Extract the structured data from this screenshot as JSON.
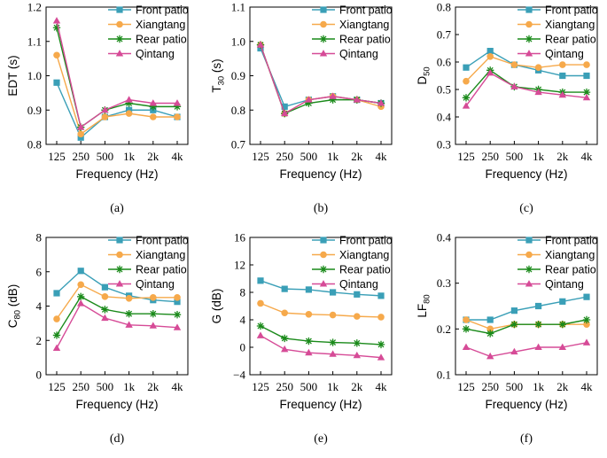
{
  "colors": {
    "front_patio": "#3a9fb7",
    "xiangtang": "#f6a94b",
    "rear_patio": "#1a8a1a",
    "qintang": "#d64b97"
  },
  "chart_data": [
    {
      "panel": "(a)",
      "type": "line",
      "categories": [
        "125",
        "250",
        "500",
        "1k",
        "2k",
        "4k"
      ],
      "xlabel": "Frequency (Hz)",
      "ylabel": "EDT (s)",
      "ylabel_main": "EDT (s)",
      "ylabel_sub": "",
      "ylabel_tail": "",
      "ylim": [
        0.8,
        1.2
      ],
      "yticks": [
        0.8,
        0.9,
        1.0,
        1.1,
        1.2
      ],
      "ytick_labels": [
        "0.8",
        "0.9",
        "1.0",
        "1.1",
        "1.2"
      ],
      "series": [
        {
          "name": "Front patio",
          "values": [
            0.98,
            0.82,
            0.88,
            0.9,
            0.9,
            0.88
          ]
        },
        {
          "name": "Xiangtang",
          "values": [
            1.06,
            0.83,
            0.88,
            0.89,
            0.88,
            0.88
          ]
        },
        {
          "name": "Rear patio",
          "values": [
            1.14,
            0.85,
            0.9,
            0.92,
            0.91,
            0.91
          ]
        },
        {
          "name": "Qintang",
          "values": [
            1.16,
            0.85,
            0.9,
            0.93,
            0.92,
            0.92
          ]
        }
      ]
    },
    {
      "panel": "(b)",
      "type": "line",
      "categories": [
        "125",
        "250",
        "500",
        "1k",
        "2k",
        "4k"
      ],
      "xlabel": "Frequency (Hz)",
      "ylabel": "T30 (s)",
      "ylabel_main": "T",
      "ylabel_sub": "30",
      "ylabel_tail": " (s)",
      "ylim": [
        0.7,
        1.1
      ],
      "yticks": [
        0.7,
        0.8,
        0.9,
        1.0,
        1.1
      ],
      "ytick_labels": [
        "0.7",
        "0.8",
        "0.9",
        "1.0",
        "1.1"
      ],
      "series": [
        {
          "name": "Front patio",
          "values": [
            0.98,
            0.81,
            0.83,
            0.84,
            0.83,
            0.82
          ]
        },
        {
          "name": "Xiangtang",
          "values": [
            0.99,
            0.79,
            0.83,
            0.84,
            0.83,
            0.81
          ]
        },
        {
          "name": "Rear patio",
          "values": [
            0.99,
            0.79,
            0.82,
            0.83,
            0.83,
            0.82
          ]
        },
        {
          "name": "Qintang",
          "values": [
            0.99,
            0.79,
            0.83,
            0.84,
            0.83,
            0.82
          ]
        }
      ]
    },
    {
      "panel": "(c)",
      "type": "line",
      "categories": [
        "125",
        "250",
        "500",
        "1k",
        "2k",
        "4k"
      ],
      "xlabel": "Frequency (Hz)",
      "ylabel": "D50",
      "ylabel_main": "D",
      "ylabel_sub": "50",
      "ylabel_tail": "",
      "ylim": [
        0.3,
        0.8
      ],
      "yticks": [
        0.3,
        0.4,
        0.5,
        0.6,
        0.7,
        0.8
      ],
      "ytick_labels": [
        "0.3",
        "0.4",
        "0.5",
        "0.6",
        "0.7",
        "0.8"
      ],
      "series": [
        {
          "name": "Front patio",
          "values": [
            0.58,
            0.64,
            0.59,
            0.57,
            0.55,
            0.55
          ]
        },
        {
          "name": "Xiangtang",
          "values": [
            0.53,
            0.62,
            0.59,
            0.58,
            0.59,
            0.59
          ]
        },
        {
          "name": "Rear patio",
          "values": [
            0.47,
            0.57,
            0.51,
            0.5,
            0.49,
            0.49
          ]
        },
        {
          "name": "Qintang",
          "values": [
            0.44,
            0.56,
            0.51,
            0.49,
            0.48,
            0.47
          ]
        }
      ]
    },
    {
      "panel": "(d)",
      "type": "line",
      "categories": [
        "125",
        "250",
        "500",
        "1k",
        "2k",
        "4k"
      ],
      "xlabel": "Frequency (Hz)",
      "ylabel": "C80 (dB)",
      "ylabel_main": "C",
      "ylabel_sub": "80",
      "ylabel_tail": " (dB)",
      "ylim": [
        0,
        8
      ],
      "yticks": [
        0,
        2,
        4,
        6,
        8
      ],
      "ytick_labels": [
        "0",
        "2",
        "4",
        "6",
        "8"
      ],
      "series": [
        {
          "name": "Front patio",
          "values": [
            4.75,
            6.05,
            5.1,
            4.6,
            4.35,
            4.25
          ]
        },
        {
          "name": "Xiangtang",
          "values": [
            3.25,
            5.25,
            4.55,
            4.45,
            4.5,
            4.5
          ]
        },
        {
          "name": "Rear patio",
          "values": [
            2.3,
            4.55,
            3.8,
            3.55,
            3.55,
            3.5
          ]
        },
        {
          "name": "Qintang",
          "values": [
            1.55,
            4.15,
            3.3,
            2.9,
            2.85,
            2.75
          ]
        }
      ]
    },
    {
      "panel": "(e)",
      "type": "line",
      "categories": [
        "125",
        "250",
        "500",
        "1k",
        "2k",
        "4k"
      ],
      "xlabel": "Frequency (Hz)",
      "ylabel": "G (dB)",
      "ylabel_main": "G (dB)",
      "ylabel_sub": "",
      "ylabel_tail": "",
      "ylim": [
        -4,
        16
      ],
      "yticks": [
        -4,
        0,
        4,
        8,
        12,
        16
      ],
      "ytick_labels": [
        "−4",
        "0",
        "4",
        "8",
        "12",
        "16"
      ],
      "series": [
        {
          "name": "Front patio",
          "values": [
            9.7,
            8.5,
            8.4,
            8.0,
            7.7,
            7.5
          ]
        },
        {
          "name": "Xiangtang",
          "values": [
            6.4,
            5.0,
            4.8,
            4.7,
            4.5,
            4.4
          ]
        },
        {
          "name": "Rear patio",
          "values": [
            3.1,
            1.3,
            0.9,
            0.7,
            0.6,
            0.4
          ]
        },
        {
          "name": "Qintang",
          "values": [
            1.7,
            -0.3,
            -0.8,
            -1.0,
            -1.2,
            -1.5
          ]
        }
      ]
    },
    {
      "panel": "(f)",
      "type": "line",
      "categories": [
        "125",
        "250",
        "500",
        "1k",
        "2k",
        "4k"
      ],
      "xlabel": "Frequency (Hz)",
      "ylabel": "LF80",
      "ylabel_main": "LF",
      "ylabel_sub": "80",
      "ylabel_tail": "",
      "ylim": [
        0.1,
        0.4
      ],
      "yticks": [
        0.1,
        0.2,
        0.3,
        0.4
      ],
      "ytick_labels": [
        "0.1",
        "0.2",
        "0.3",
        "0.4"
      ],
      "series": [
        {
          "name": "Front patio",
          "values": [
            0.22,
            0.22,
            0.24,
            0.25,
            0.26,
            0.27
          ]
        },
        {
          "name": "Xiangtang",
          "values": [
            0.22,
            0.2,
            0.21,
            0.21,
            0.21,
            0.21
          ]
        },
        {
          "name": "Rear patio",
          "values": [
            0.2,
            0.19,
            0.21,
            0.21,
            0.21,
            0.22
          ]
        },
        {
          "name": "Qintang",
          "values": [
            0.16,
            0.14,
            0.15,
            0.16,
            0.16,
            0.17
          ]
        }
      ]
    }
  ]
}
